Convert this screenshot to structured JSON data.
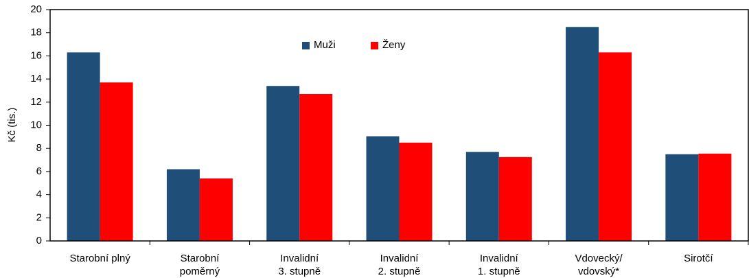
{
  "chart_data": {
    "type": "bar",
    "y_label": "Kč (tis.)",
    "categories": [
      "Starobní plný",
      "Starobní\npoměrný",
      "Invalidní\n3. stupně",
      "Invalidní\n2. stupně",
      "Invalidní\n1. stupně",
      "Vdovecký/\nvdovský*",
      "Sirotčí"
    ],
    "series": [
      {
        "name": "Muži",
        "color": "#1f4e79",
        "values": [
          16.3,
          6.2,
          13.4,
          9.05,
          7.7,
          18.5,
          7.5
        ]
      },
      {
        "name": "Ženy",
        "color": "#ff0000",
        "values": [
          13.7,
          5.4,
          12.7,
          8.5,
          7.25,
          16.3,
          7.55
        ]
      }
    ],
    "ylim": [
      0,
      20
    ],
    "yticks": [
      0,
      2,
      4,
      6,
      8,
      10,
      12,
      14,
      16,
      18,
      20
    ],
    "grid": false,
    "legend": "top"
  }
}
